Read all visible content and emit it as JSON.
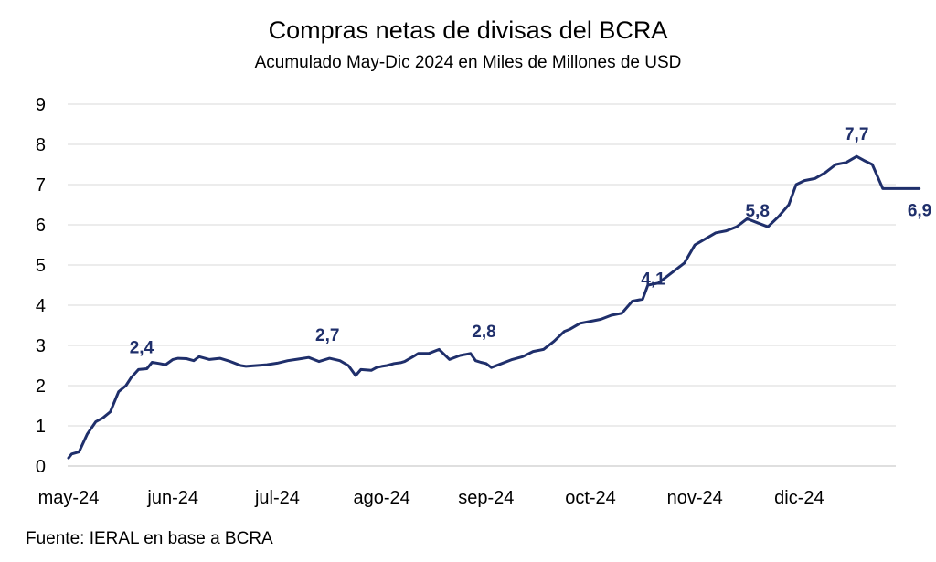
{
  "chart_data": {
    "type": "line",
    "title": "Compras netas de divisas del BCRA",
    "subtitle": "Acumulado May-Dic 2024 en Miles de Millones de USD",
    "source": "Fuente: IERAL en base a BCRA",
    "xlabel": "",
    "ylabel": "",
    "ylim": [
      0,
      9
    ],
    "yticks": [
      "0",
      "1",
      "2",
      "3",
      "4",
      "5",
      "6",
      "7",
      "8",
      "9"
    ],
    "categories": [
      "may-24",
      "jun-24",
      "jul-24",
      "ago-24",
      "sep-24",
      "oct-24",
      "nov-24",
      "dic-24"
    ],
    "grid": true,
    "line_color": "#1f2f6b",
    "series": [
      {
        "name": "Acumulado",
        "x": [
          0,
          0.03,
          0.1,
          0.18,
          0.26,
          0.33,
          0.4,
          0.48,
          0.55,
          0.6,
          0.67,
          0.75,
          0.8,
          0.87,
          0.93,
          1.0,
          1.05,
          1.13,
          1.2,
          1.25,
          1.35,
          1.45,
          1.55,
          1.65,
          1.7,
          1.8,
          1.9,
          2.0,
          2.1,
          2.2,
          2.3,
          2.4,
          2.5,
          2.6,
          2.68,
          2.75,
          2.8,
          2.9,
          2.95,
          3.0,
          3.05,
          3.12,
          3.18,
          3.22,
          3.3,
          3.35,
          3.45,
          3.55,
          3.65,
          3.75,
          3.85,
          3.9,
          3.95,
          4.0,
          4.05,
          4.15,
          4.25,
          4.35,
          4.45,
          4.55,
          4.65,
          4.75,
          4.8,
          4.9,
          5.0,
          5.1,
          5.2,
          5.3,
          5.4,
          5.5,
          5.55,
          5.65,
          5.7,
          5.8,
          5.9,
          6.0,
          6.1,
          6.2,
          6.3,
          6.4,
          6.5,
          6.6,
          6.7,
          6.8,
          6.9,
          6.97,
          7.05,
          7.15,
          7.25,
          7.35,
          7.45,
          7.55,
          7.62,
          7.7,
          7.8,
          7.88,
          7.94,
          8.0,
          8.05,
          8.15
        ],
        "values": [
          0.2,
          0.3,
          0.35,
          0.8,
          1.1,
          1.2,
          1.35,
          1.85,
          2.0,
          2.2,
          2.4,
          2.42,
          2.58,
          2.55,
          2.52,
          2.65,
          2.68,
          2.67,
          2.62,
          2.72,
          2.65,
          2.68,
          2.6,
          2.5,
          2.48,
          2.5,
          2.52,
          2.56,
          2.62,
          2.66,
          2.7,
          2.6,
          2.68,
          2.62,
          2.5,
          2.25,
          2.4,
          2.38,
          2.45,
          2.48,
          2.5,
          2.55,
          2.57,
          2.6,
          2.72,
          2.8,
          2.8,
          2.9,
          2.65,
          2.75,
          2.8,
          2.62,
          2.58,
          2.55,
          2.45,
          2.55,
          2.65,
          2.72,
          2.85,
          2.9,
          3.1,
          3.35,
          3.4,
          3.55,
          3.6,
          3.65,
          3.75,
          3.8,
          4.1,
          4.15,
          4.5,
          4.55,
          4.65,
          4.85,
          5.05,
          5.5,
          5.65,
          5.8,
          5.85,
          5.95,
          6.15,
          6.05,
          5.95,
          6.2,
          6.5,
          7.0,
          7.1,
          7.15,
          7.3,
          7.5,
          7.55,
          7.7,
          7.6,
          7.5,
          6.9,
          6.9,
          6.9,
          6.9,
          6.9,
          6.9
        ]
      }
    ],
    "data_labels": [
      {
        "text": "2,4",
        "x": 0.7,
        "y": 2.4
      },
      {
        "text": "2,7",
        "x": 2.48,
        "y": 2.7
      },
      {
        "text": "2,8",
        "x": 3.98,
        "y": 2.8
      },
      {
        "text": "4,1",
        "x": 5.6,
        "y": 4.1
      },
      {
        "text": "5,8",
        "x": 6.6,
        "y": 5.8
      },
      {
        "text": "7,7",
        "x": 7.55,
        "y": 7.7
      },
      {
        "text": "6,9",
        "x": 7.96,
        "y": 6.9
      }
    ]
  }
}
